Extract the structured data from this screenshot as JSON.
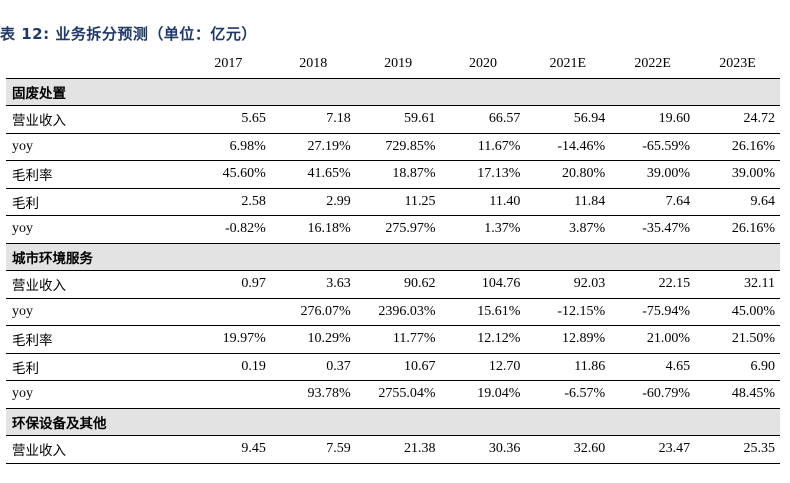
{
  "caption": "表 12:  业务拆分预测（单位：亿元）",
  "columns": [
    "2017",
    "2018",
    "2019",
    "2020",
    "2021E",
    "2022E",
    "2023E"
  ],
  "sections": [
    {
      "title": "固废处置",
      "rows": [
        {
          "label": "营业收入",
          "values": [
            "5.65",
            "7.18",
            "59.61",
            "66.57",
            "56.94",
            "19.60",
            "24.72"
          ]
        },
        {
          "label": "yoy",
          "values": [
            "6.98%",
            "27.19%",
            "729.85%",
            "11.67%",
            "-14.46%",
            "-65.59%",
            "26.16%"
          ]
        },
        {
          "label": "毛利率",
          "values": [
            "45.60%",
            "41.65%",
            "18.87%",
            "17.13%",
            "20.80%",
            "39.00%",
            "39.00%"
          ]
        },
        {
          "label": "毛利",
          "values": [
            "2.58",
            "2.99",
            "11.25",
            "11.40",
            "11.84",
            "7.64",
            "9.64"
          ]
        },
        {
          "label": "yoy",
          "values": [
            "-0.82%",
            "16.18%",
            "275.97%",
            "1.37%",
            "3.87%",
            "-35.47%",
            "26.16%"
          ]
        }
      ]
    },
    {
      "title": "城市环境服务",
      "rows": [
        {
          "label": "营业收入",
          "values": [
            "0.97",
            "3.63",
            "90.62",
            "104.76",
            "92.03",
            "22.15",
            "32.11"
          ]
        },
        {
          "label": "yoy",
          "values": [
            "",
            "276.07%",
            "2396.03%",
            "15.61%",
            "-12.15%",
            "-75.94%",
            "45.00%"
          ]
        },
        {
          "label": "毛利率",
          "values": [
            "19.97%",
            "10.29%",
            "11.77%",
            "12.12%",
            "12.89%",
            "21.00%",
            "21.50%"
          ]
        },
        {
          "label": "毛利",
          "values": [
            "0.19",
            "0.37",
            "10.67",
            "12.70",
            "11.86",
            "4.65",
            "6.90"
          ]
        },
        {
          "label": "yoy",
          "values": [
            "",
            "93.78%",
            "2755.04%",
            "19.04%",
            "-6.57%",
            "-60.79%",
            "48.45%"
          ]
        }
      ]
    },
    {
      "title": "环保设备及其他",
      "rows": [
        {
          "label": "营业收入",
          "values": [
            "9.45",
            "7.59",
            "21.38",
            "30.36",
            "32.60",
            "23.47",
            "25.35"
          ]
        }
      ]
    }
  ]
}
